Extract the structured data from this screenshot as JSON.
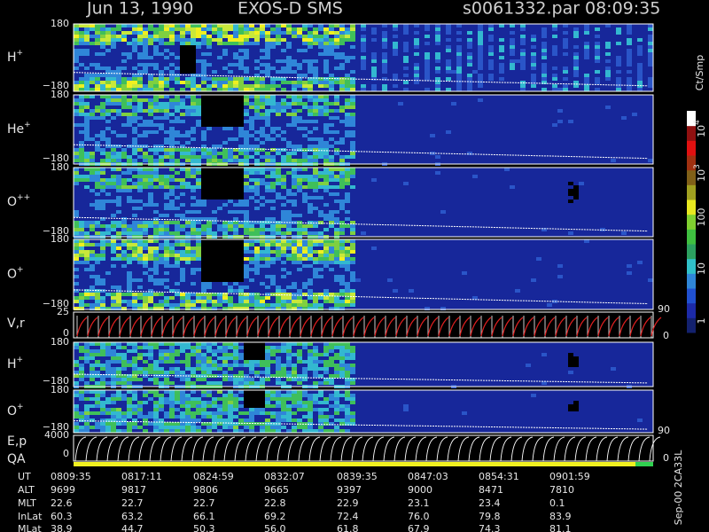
{
  "header": {
    "date": "Jun 13, 1990",
    "instrument": "EXOS-D SMS",
    "file": "s0061332.par",
    "time": "08:09:35"
  },
  "panels": [
    {
      "label": {
        "base": "H",
        "sup": "+"
      },
      "ticks": [
        "180",
        "−180"
      ]
    },
    {
      "label": {
        "base": "He",
        "sup": "+"
      },
      "ticks": [
        "180",
        "−180"
      ]
    },
    {
      "label": {
        "base": "O",
        "sup": "++"
      },
      "ticks": [
        "180",
        "−180"
      ]
    },
    {
      "label": {
        "base": "O",
        "sup": "+"
      },
      "ticks": [
        "180",
        "−180"
      ]
    },
    {
      "label": {
        "base": "H",
        "sup": "+"
      },
      "ticks": [
        "180",
        "−180"
      ]
    },
    {
      "label": {
        "base": "O",
        "sup": "+"
      },
      "ticks": [
        "180",
        "−180"
      ]
    }
  ],
  "vr": {
    "label": "V,r",
    "left_ticks": [
      "25",
      "0"
    ],
    "right_ticks": [
      "90",
      "0"
    ]
  },
  "ep": {
    "label": "E,p",
    "left_ticks": [
      "4000",
      "0"
    ],
    "right_ticks": [
      "90",
      "0"
    ]
  },
  "qa": {
    "label": "QA"
  },
  "colorbar": {
    "unit": "Ct/Smp",
    "labels": [
      {
        "base": "10",
        "sup": "4"
      },
      {
        "base": "10",
        "sup": "3"
      },
      {
        "base": "100"
      },
      {
        "base": "10"
      },
      {
        "base": "1"
      }
    ]
  },
  "footer_note": "Sep-00  2CA33L",
  "table": {
    "row_labels": [
      "UT",
      "ALT",
      "MLT",
      "InLat",
      "MLat"
    ],
    "rows": [
      [
        "0809:35",
        "0817:11",
        "0824:59",
        "0832:07",
        "0839:35",
        "0847:03",
        "0854:31",
        "0901:59"
      ],
      [
        "9699",
        "9817",
        "9806",
        "9665",
        "9397",
        "9000",
        "8471",
        "7810"
      ],
      [
        "22.6",
        "22.7",
        "22.7",
        "22.8",
        "22.9",
        "23.1",
        "23.4",
        "0.1"
      ],
      [
        "60.3",
        "63.2",
        "66.1",
        "69.2",
        "72.4",
        "76.0",
        "79.8",
        "83.9"
      ],
      [
        "38.9",
        "44.7",
        "50.3",
        "56.0",
        "61.8",
        "67.9",
        "74.3",
        "81.1"
      ]
    ]
  }
}
